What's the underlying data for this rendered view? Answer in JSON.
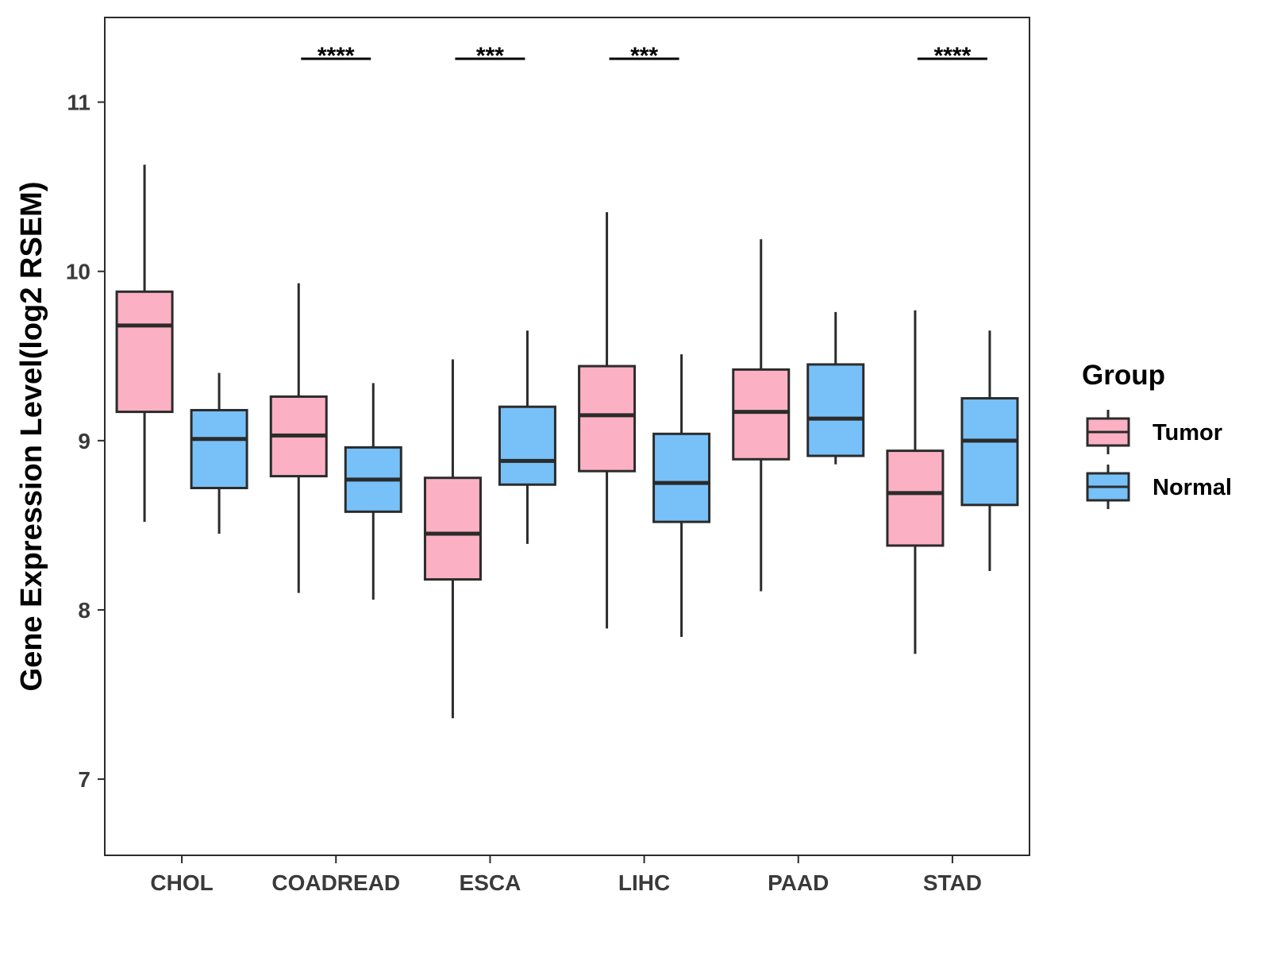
{
  "chart_data": {
    "type": "box",
    "title": "",
    "xlabel": "",
    "ylabel": "Gene Expression Level(log2 RSEM)",
    "ylim": [
      6.55,
      11.5
    ],
    "yticks": [
      7,
      8,
      9,
      10,
      11
    ],
    "categories": [
      "CHOL",
      "COADREAD",
      "ESCA",
      "LIHC",
      "PAAD",
      "STAD"
    ],
    "legend": {
      "title": "Group",
      "position": "right",
      "entries": [
        {
          "name": "Tumor",
          "color": "#FBB1C3"
        },
        {
          "name": "Normal",
          "color": "#77C1F8"
        }
      ]
    },
    "series": [
      {
        "name": "Tumor",
        "color": "#FBB1C3",
        "boxes": [
          {
            "category": "CHOL",
            "min": 8.52,
            "q1": 9.17,
            "median": 9.68,
            "q3": 9.88,
            "max": 10.63
          },
          {
            "category": "COADREAD",
            "min": 8.1,
            "q1": 8.79,
            "median": 9.03,
            "q3": 9.26,
            "max": 9.93
          },
          {
            "category": "ESCA",
            "min": 7.36,
            "q1": 8.18,
            "median": 8.45,
            "q3": 8.78,
            "max": 9.48
          },
          {
            "category": "LIHC",
            "min": 7.89,
            "q1": 8.82,
            "median": 9.15,
            "q3": 9.44,
            "max": 10.35
          },
          {
            "category": "PAAD",
            "min": 8.11,
            "q1": 8.89,
            "median": 9.17,
            "q3": 9.42,
            "max": 10.19
          },
          {
            "category": "STAD",
            "min": 7.74,
            "q1": 8.38,
            "median": 8.69,
            "q3": 8.94,
            "max": 9.77
          }
        ]
      },
      {
        "name": "Normal",
        "color": "#77C1F8",
        "boxes": [
          {
            "category": "CHOL",
            "min": 8.45,
            "q1": 8.72,
            "median": 9.01,
            "q3": 9.18,
            "max": 9.4
          },
          {
            "category": "COADREAD",
            "min": 8.06,
            "q1": 8.58,
            "median": 8.77,
            "q3": 8.96,
            "max": 9.34
          },
          {
            "category": "ESCA",
            "min": 8.39,
            "q1": 8.74,
            "median": 8.88,
            "q3": 9.2,
            "max": 9.65
          },
          {
            "category": "LIHC",
            "min": 7.84,
            "q1": 8.52,
            "median": 8.75,
            "q3": 9.04,
            "max": 9.51
          },
          {
            "category": "PAAD",
            "min": 8.86,
            "q1": 8.91,
            "median": 9.13,
            "q3": 9.45,
            "max": 9.76
          },
          {
            "category": "STAD",
            "min": 8.23,
            "q1": 8.62,
            "median": 9.0,
            "q3": 9.25,
            "max": 9.65
          }
        ]
      }
    ],
    "significance": [
      {
        "category": "COADREAD",
        "label": "****"
      },
      {
        "category": "ESCA",
        "label": "***"
      },
      {
        "category": "LIHC",
        "label": "***"
      },
      {
        "category": "STAD",
        "label": "****"
      }
    ]
  }
}
